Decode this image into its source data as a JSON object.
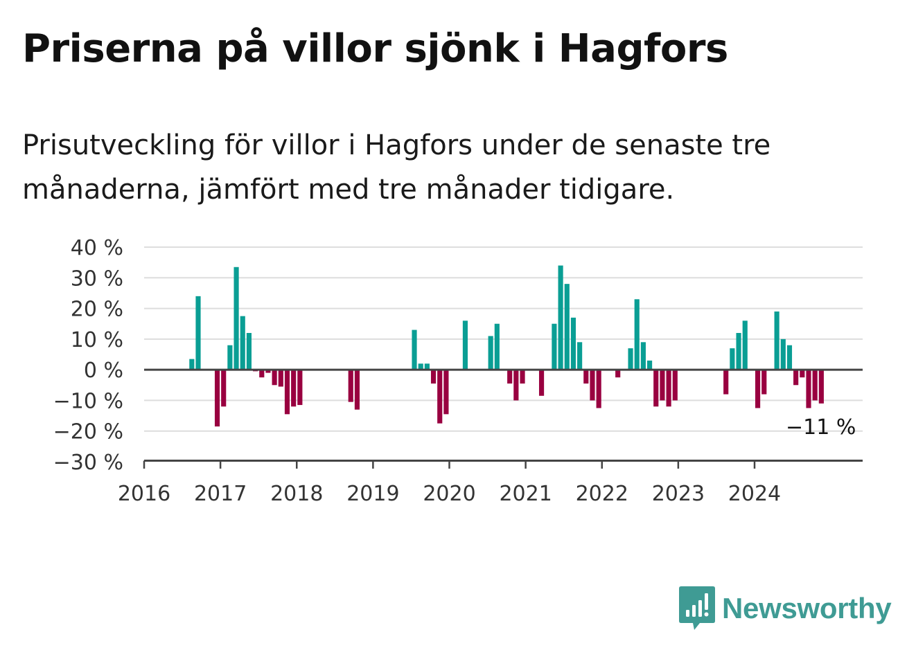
{
  "title": "Priserna på villor sjönk i Hagfors",
  "subtitle": "Prisutveckling för villor i Hagfors under de senaste tre månaderna, jämfört med tre månader tidigare.",
  "brand": {
    "name": "Newsworthy",
    "color": "#3f9b94",
    "icon": "bar-chart-speech-bubble-icon"
  },
  "chart_data": {
    "type": "bar",
    "title": "Priserna på villor sjönk i Hagfors",
    "xlabel": "",
    "ylabel": "",
    "ylim": [
      -30,
      40
    ],
    "xlim": [
      "2016-01",
      "2025-06"
    ],
    "grid": true,
    "legend": "none",
    "y_ticks": [
      "40 %",
      "30 %",
      "20 %",
      "10 %",
      "0 %",
      "−10 %",
      "−20 %",
      "−30 %"
    ],
    "x_ticks": [
      "2016",
      "2017",
      "2018",
      "2019",
      "2020",
      "2021",
      "2022",
      "2023",
      "2024"
    ],
    "colors": {
      "positive": "#0a9e94",
      "negative": "#990040",
      "zero_line": "#444444",
      "grid": "#dddddd"
    },
    "end_label": "−11 %",
    "series": [
      {
        "values": [
          {
            "x": "2016-08",
            "y": 3.5
          },
          {
            "x": "2016-09",
            "y": 24
          },
          {
            "x": "2016-12",
            "y": -18.5
          },
          {
            "x": "2017-01",
            "y": -12
          },
          {
            "x": "2017-02",
            "y": 8
          },
          {
            "x": "2017-03",
            "y": 33.5
          },
          {
            "x": "2017-04",
            "y": 17.5
          },
          {
            "x": "2017-05",
            "y": 12
          },
          {
            "x": "2017-06",
            "y": -0.5
          },
          {
            "x": "2017-07",
            "y": -2.5
          },
          {
            "x": "2017-08",
            "y": -1
          },
          {
            "x": "2017-09",
            "y": -5
          },
          {
            "x": "2017-10",
            "y": -5.5
          },
          {
            "x": "2017-11",
            "y": -14.5
          },
          {
            "x": "2017-12",
            "y": -12
          },
          {
            "x": "2018-01",
            "y": -11.5
          },
          {
            "x": "2018-09",
            "y": -10.5
          },
          {
            "x": "2018-10",
            "y": -13
          },
          {
            "x": "2019-07",
            "y": 13
          },
          {
            "x": "2019-08",
            "y": 2
          },
          {
            "x": "2019-09",
            "y": 2
          },
          {
            "x": "2019-10",
            "y": -4.5
          },
          {
            "x": "2019-11",
            "y": -17.5
          },
          {
            "x": "2019-12",
            "y": -14.5
          },
          {
            "x": "2020-03",
            "y": 16
          },
          {
            "x": "2020-07",
            "y": 11
          },
          {
            "x": "2020-08",
            "y": 15
          },
          {
            "x": "2020-10",
            "y": -4.5
          },
          {
            "x": "2020-11",
            "y": -10
          },
          {
            "x": "2020-12",
            "y": -4.5
          },
          {
            "x": "2021-03",
            "y": -8.5
          },
          {
            "x": "2021-05",
            "y": 15
          },
          {
            "x": "2021-06",
            "y": 34
          },
          {
            "x": "2021-07",
            "y": 28
          },
          {
            "x": "2021-08",
            "y": 17
          },
          {
            "x": "2021-09",
            "y": 9
          },
          {
            "x": "2021-10",
            "y": -4.5
          },
          {
            "x": "2021-11",
            "y": -10
          },
          {
            "x": "2021-12",
            "y": -12.5
          },
          {
            "x": "2022-03",
            "y": -2.5
          },
          {
            "x": "2022-05",
            "y": 7
          },
          {
            "x": "2022-06",
            "y": 23
          },
          {
            "x": "2022-07",
            "y": 9
          },
          {
            "x": "2022-08",
            "y": 3
          },
          {
            "x": "2022-09",
            "y": -12
          },
          {
            "x": "2022-10",
            "y": -10
          },
          {
            "x": "2022-11",
            "y": -12
          },
          {
            "x": "2022-12",
            "y": -10
          },
          {
            "x": "2023-08",
            "y": -8
          },
          {
            "x": "2023-09",
            "y": 7
          },
          {
            "x": "2023-10",
            "y": 12
          },
          {
            "x": "2023-11",
            "y": 16
          },
          {
            "x": "2024-01",
            "y": -12.5
          },
          {
            "x": "2024-02",
            "y": -8
          },
          {
            "x": "2024-04",
            "y": 19
          },
          {
            "x": "2024-05",
            "y": 10
          },
          {
            "x": "2024-06",
            "y": 8
          },
          {
            "x": "2024-07",
            "y": -5
          },
          {
            "x": "2024-08",
            "y": -2.5
          },
          {
            "x": "2024-09",
            "y": -12.5
          },
          {
            "x": "2024-10",
            "y": -10
          },
          {
            "x": "2024-11",
            "y": -11
          }
        ]
      }
    ]
  }
}
